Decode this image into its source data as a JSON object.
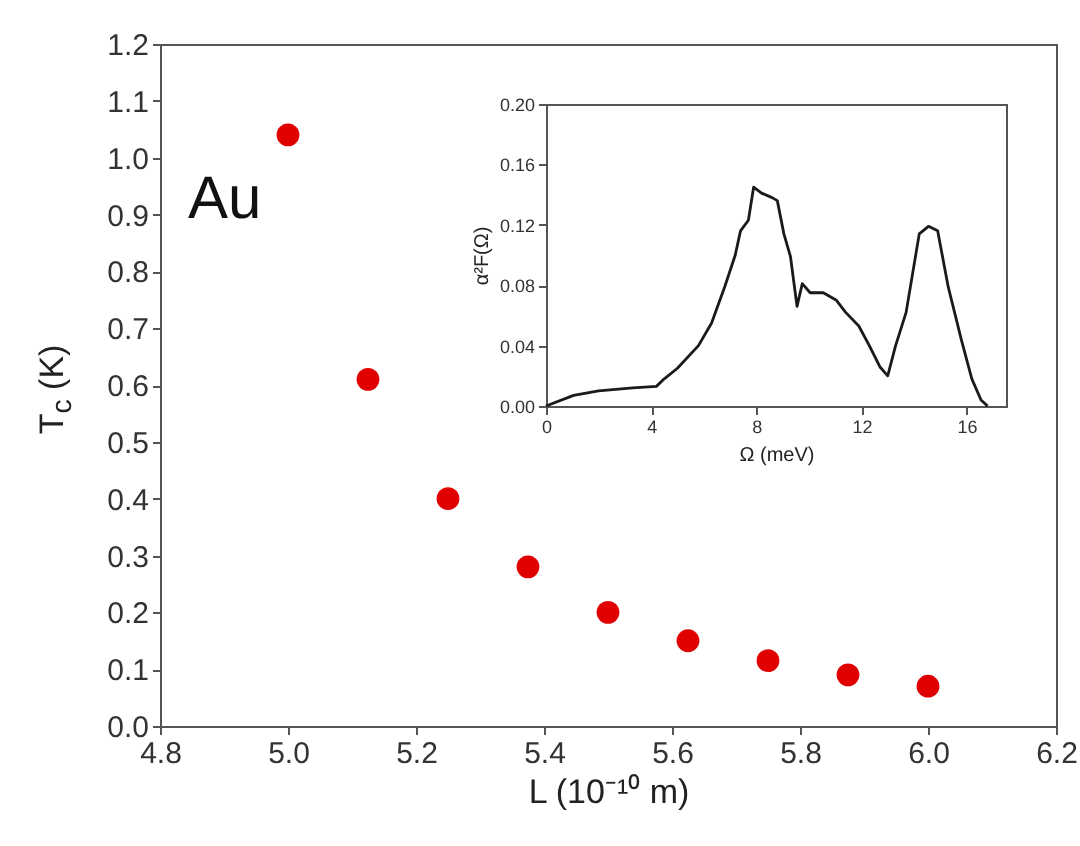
{
  "chart_data": [
    {
      "type": "scatter",
      "xlabel": "L  (10⁻¹⁰ m)",
      "ylabel": "T$_{c}$ (K)",
      "annotations": [
        "Au"
      ],
      "x": [
        5.0,
        5.125,
        5.25,
        5.375,
        5.5,
        5.625,
        5.75,
        5.875,
        6.0
      ],
      "series": [
        {
          "color": "#e00000",
          "values": [
            1.04,
            0.61,
            0.4,
            0.28,
            0.2,
            0.15,
            0.115,
            0.09,
            0.07
          ]
        }
      ],
      "xlim": [
        4.8,
        6.2
      ],
      "xticks": [
        4.8,
        {
          "value": 5,
          "label": "5.0"
        },
        5.2,
        5.4,
        5.6,
        5.8,
        {
          "value": 6,
          "label": "6.0"
        },
        6.2
      ],
      "ylim": [
        0,
        1.2
      ],
      "yticks": [
        {
          "value": 0,
          "label": "0.0"
        },
        0.1,
        0.2,
        0.3,
        0.4,
        0.5,
        0.6,
        0.7,
        0.8,
        0.9,
        {
          "value": 1,
          "label": "1.0"
        },
        1.1,
        1.2
      ],
      "marker": "circle",
      "grid": false,
      "legend": false
    },
    {
      "type": "line",
      "xlabel": "Ω (meV)",
      "ylabel": "α²F(Ω)",
      "x": [
        0,
        1.05,
        2,
        3.3,
        4.2,
        4.5,
        5,
        5.8,
        6.3,
        6.8,
        7.2,
        7.4,
        7.7,
        7.9,
        8.2,
        8.6,
        8.8,
        9.05,
        9.3,
        9.55,
        9.75,
        10.05,
        10.55,
        11.05,
        11.4,
        11.9,
        12.3,
        12.7,
        13,
        13.3,
        13.7,
        14.2,
        14.55,
        14.9,
        15.3,
        15.8,
        16.2,
        16.55,
        16.8
      ],
      "series": [
        {
          "color": "#1a1a1a",
          "values": [
            0,
            0.007,
            0.01,
            0.012,
            0.013,
            0.018,
            0.025,
            0.04,
            0.055,
            0.079,
            0.1,
            0.116,
            0.123,
            0.145,
            0.141,
            0.138,
            0.136,
            0.114,
            0.099,
            0.066,
            0.081,
            0.075,
            0.075,
            0.07,
            0.062,
            0.053,
            0.04,
            0.026,
            0.02,
            0.04,
            0.062,
            0.114,
            0.119,
            0.116,
            0.079,
            0.044,
            0.018,
            0.004,
            0
          ]
        }
      ],
      "xlim": [
        0,
        17.5
      ],
      "xticks": [
        0,
        4,
        8,
        12,
        16
      ],
      "ylim": [
        0,
        0.2
      ],
      "yticks": [
        {
          "value": 0,
          "label": "0.00"
        },
        0.04,
        0.08,
        0.12,
        0.16,
        {
          "value": 0.2,
          "label": "0.20"
        }
      ],
      "marker": "none",
      "line_style": "solid",
      "grid": false,
      "legend": false
    }
  ]
}
